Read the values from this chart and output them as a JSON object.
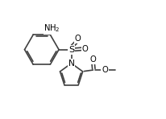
{
  "bg": "#ffffff",
  "lc": "#404040",
  "tc": "#000000",
  "lw": 1.2,
  "fs": 7.2,
  "xlim": [
    0,
    10.5
  ],
  "ylim": [
    0,
    7.8
  ]
}
